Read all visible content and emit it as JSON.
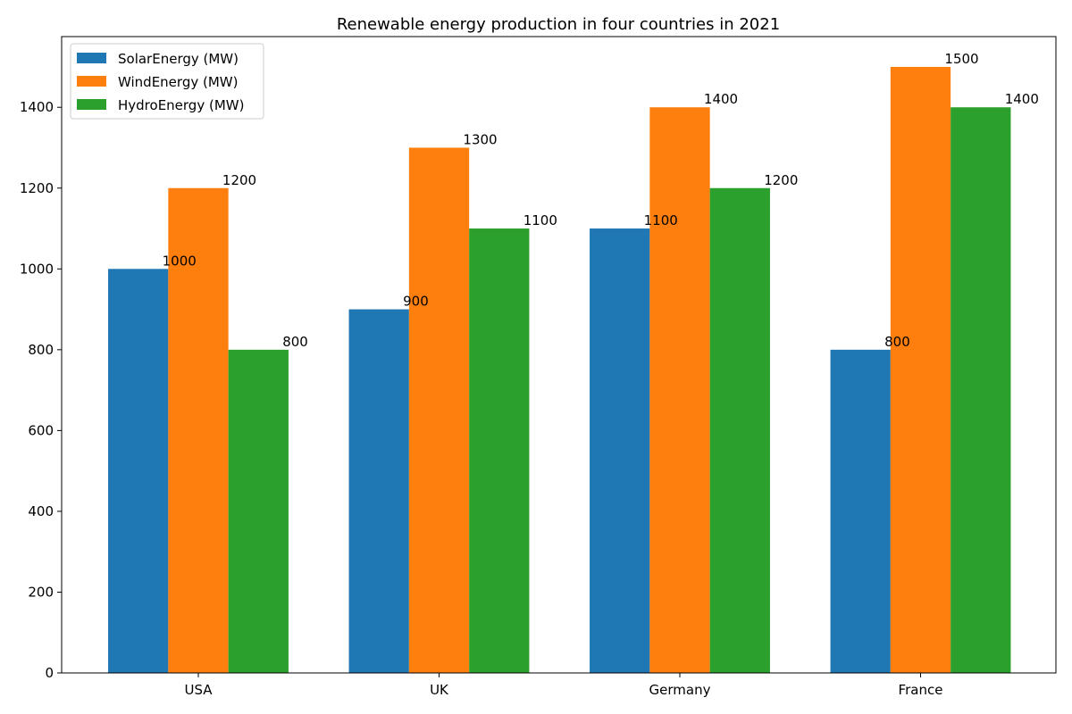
{
  "chart_data": {
    "type": "bar",
    "title": "Renewable energy production in four countries in 2021",
    "xlabel": "",
    "ylabel": "",
    "categories": [
      "USA",
      "UK",
      "Germany",
      "France"
    ],
    "series": [
      {
        "name": "SolarEnergy (MW)",
        "values": [
          1000,
          900,
          1100,
          800
        ],
        "color": "#1f77b4"
      },
      {
        "name": "WindEnergy (MW)",
        "values": [
          1200,
          1300,
          1400,
          1500
        ],
        "color": "#ff7f0e"
      },
      {
        "name": "HydroEnergy (MW)",
        "values": [
          800,
          1100,
          1200,
          1400
        ],
        "color": "#2ca02c"
      }
    ],
    "ylim": [
      0,
      1575
    ],
    "yticks": [
      0,
      200,
      400,
      600,
      800,
      1000,
      1200,
      1400
    ],
    "legend": "top-left",
    "grid": false
  }
}
